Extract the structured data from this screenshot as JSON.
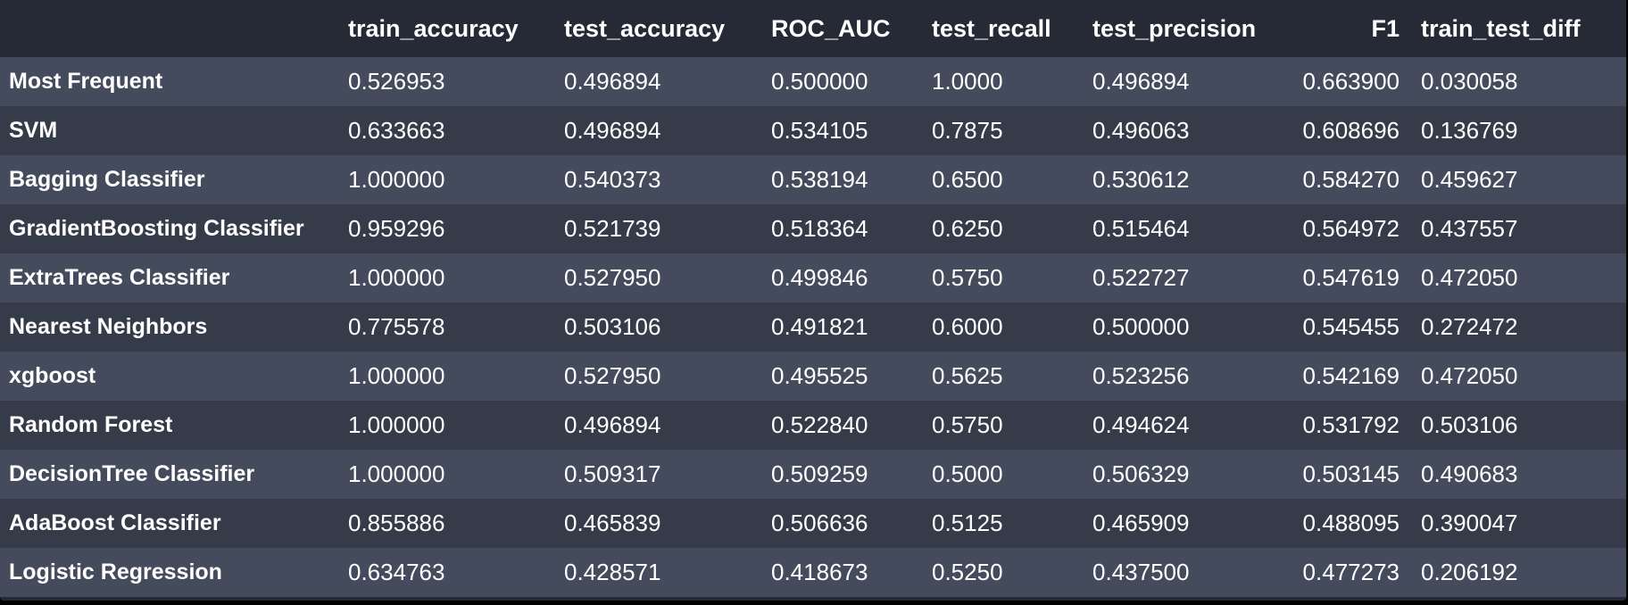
{
  "table": {
    "columns": [
      "",
      "train_accuracy",
      "test_accuracy",
      "ROC_AUC",
      "test_recall",
      "test_precision",
      "F1",
      "train_test_diff"
    ],
    "rows": [
      [
        "Most Frequent",
        "0.526953",
        "0.496894",
        "0.500000",
        "1.0000",
        "0.496894",
        "0.663900",
        "0.030058"
      ],
      [
        "SVM",
        "0.633663",
        "0.496894",
        "0.534105",
        "0.7875",
        "0.496063",
        "0.608696",
        "0.136769"
      ],
      [
        "Bagging Classifier",
        "1.000000",
        "0.540373",
        "0.538194",
        "0.6500",
        "0.530612",
        "0.584270",
        "0.459627"
      ],
      [
        "GradientBoosting Classifier",
        "0.959296",
        "0.521739",
        "0.518364",
        "0.6250",
        "0.515464",
        "0.564972",
        "0.437557"
      ],
      [
        "ExtraTrees Classifier",
        "1.000000",
        "0.527950",
        "0.499846",
        "0.5750",
        "0.522727",
        "0.547619",
        "0.472050"
      ],
      [
        "Nearest Neighbors",
        "0.775578",
        "0.503106",
        "0.491821",
        "0.6000",
        "0.500000",
        "0.545455",
        "0.272472"
      ],
      [
        "xgboost",
        "1.000000",
        "0.527950",
        "0.495525",
        "0.5625",
        "0.523256",
        "0.542169",
        "0.472050"
      ],
      [
        "Random Forest",
        "1.000000",
        "0.496894",
        "0.522840",
        "0.5750",
        "0.494624",
        "0.531792",
        "0.503106"
      ],
      [
        "DecisionTree Classifier",
        "1.000000",
        "0.509317",
        "0.509259",
        "0.5000",
        "0.506329",
        "0.503145",
        "0.490683"
      ],
      [
        "AdaBoost Classifier",
        "0.855886",
        "0.465839",
        "0.506636",
        "0.5125",
        "0.465909",
        "0.488095",
        "0.390047"
      ],
      [
        "Logistic Regression",
        "0.634763",
        "0.428571",
        "0.418673",
        "0.5250",
        "0.437500",
        "0.477273",
        "0.206192"
      ]
    ]
  },
  "colors": {
    "header_bg": "#262a36",
    "row_odd_bg": "#444b5c",
    "row_even_bg": "#363b4a",
    "text": "#ffffff",
    "outer_bg": "#000000"
  }
}
